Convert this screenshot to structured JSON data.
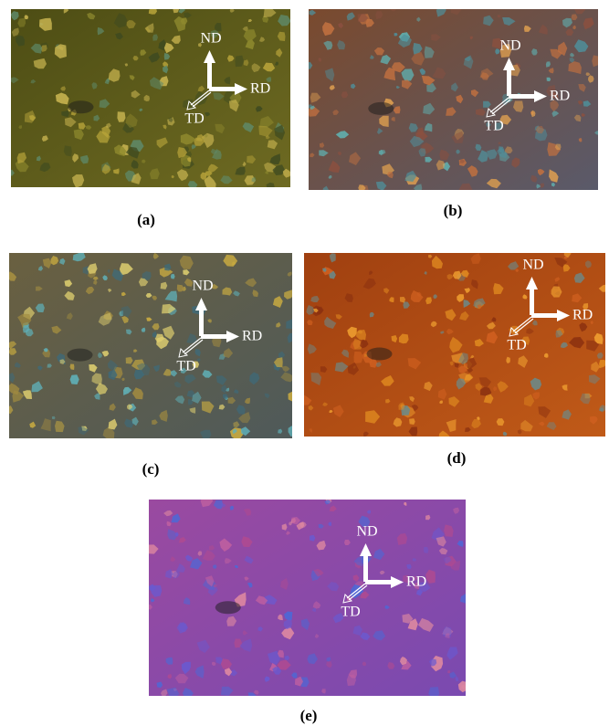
{
  "panels": [
    {
      "caption": "(a)",
      "axes": {
        "nd": "ND",
        "rd": "RD",
        "td": "TD"
      }
    },
    {
      "caption": "(b)",
      "axes": {
        "nd": "ND",
        "rd": "RD",
        "td": "TD"
      }
    },
    {
      "caption": "(c)",
      "axes": {
        "nd": "ND",
        "rd": "RD",
        "td": "TD"
      }
    },
    {
      "caption": "(d)",
      "axes": {
        "nd": "ND",
        "rd": "RD",
        "td": "TD"
      }
    },
    {
      "caption": "(e)",
      "axes": {
        "nd": "ND",
        "rd": "RD",
        "td": "TD"
      }
    }
  ]
}
